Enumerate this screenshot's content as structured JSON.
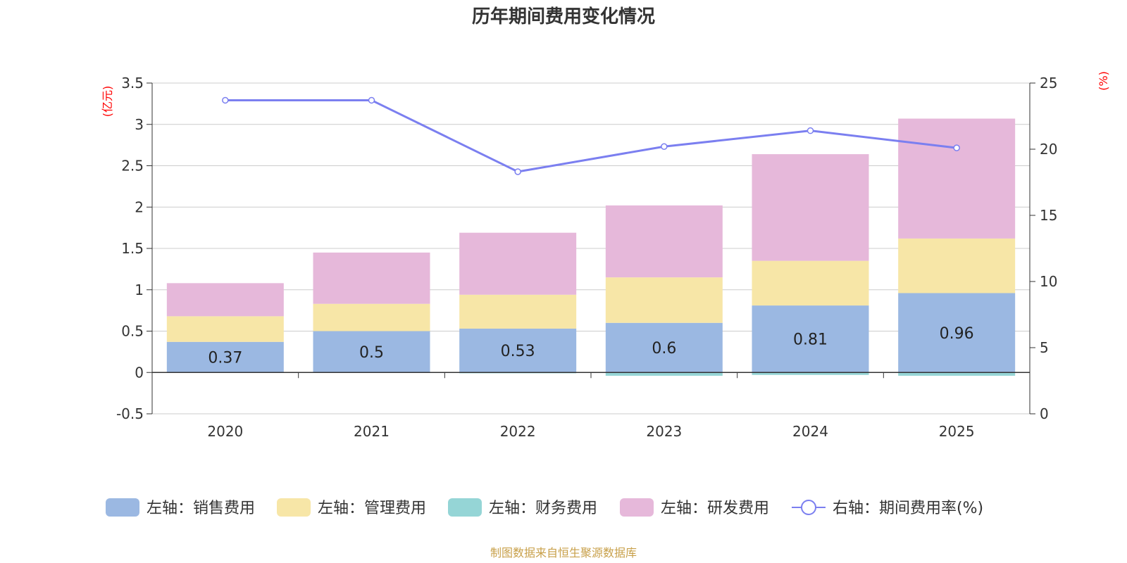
{
  "chart_data": {
    "type": "bar",
    "title": "历年期间费用变化情况",
    "categories": [
      "2020",
      "2021",
      "2022",
      "2023",
      "2024",
      "2025"
    ],
    "left_axis": {
      "unit": "(亿元)",
      "ylim": [
        -0.5,
        3.5
      ],
      "ticks": [
        "3.5",
        "3",
        "2.5",
        "2",
        "1.5",
        "1",
        "0.5",
        "0",
        "-0.5"
      ]
    },
    "right_axis": {
      "unit": "(%)",
      "ylim": [
        0,
        25
      ],
      "ticks": [
        "25",
        "20",
        "15",
        "10",
        "5",
        "0"
      ]
    },
    "series": [
      {
        "name": "左轴：销售费用",
        "axis": "left",
        "type": "bar",
        "color": "#9bb8e2",
        "values": [
          0.37,
          0.5,
          0.53,
          0.6,
          0.81,
          0.96
        ],
        "labels": [
          "0.37",
          "0.5",
          "0.53",
          "0.6",
          "0.81",
          "0.96"
        ]
      },
      {
        "name": "左轴：管理费用",
        "axis": "left",
        "type": "bar",
        "color": "#f7e6a7",
        "values": [
          0.31,
          0.33,
          0.41,
          0.55,
          0.54,
          0.66
        ]
      },
      {
        "name": "左轴：财务费用",
        "axis": "left",
        "type": "bar",
        "color": "#95d5d6",
        "values": [
          0.0,
          0.0,
          -0.01,
          -0.04,
          -0.03,
          -0.04
        ]
      },
      {
        "name": "左轴：研发费用",
        "axis": "left",
        "type": "bar",
        "color": "#e6b8da",
        "values": [
          0.4,
          0.62,
          0.75,
          0.87,
          1.29,
          1.45
        ]
      },
      {
        "name": "右轴：期间费用率(%)",
        "axis": "right",
        "type": "line",
        "color": "#7b7ff0",
        "values": [
          23.7,
          23.7,
          18.3,
          20.2,
          21.4,
          20.1
        ]
      }
    ]
  },
  "source": "制图数据来自恒生聚源数据库"
}
